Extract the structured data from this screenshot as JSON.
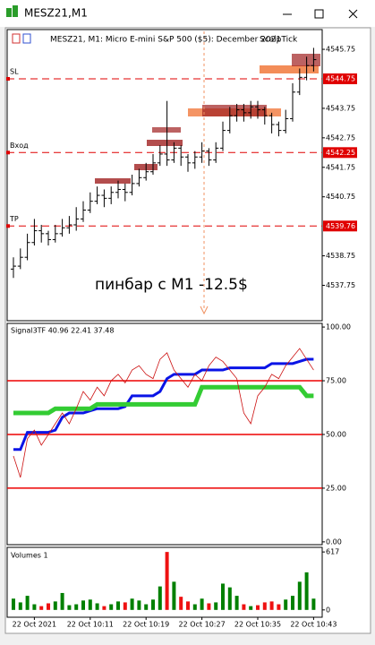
{
  "window": {
    "title": "MESZ21,M1"
  },
  "chart_data": [
    {
      "type": "ohlc",
      "title": "MESZ21, M1:  Micro E-mini S&P 500 ($5): December 2021",
      "indicator_name": "ScalpTick",
      "annotation": "пинбар с М1 -12.5$",
      "open": [
        4538.3,
        4538.4,
        4538.7,
        4539.2,
        4539.6,
        4539.5,
        4539.3,
        4539.5,
        4539.7,
        4539.8,
        4540.0,
        4540.3,
        4540.6,
        4540.8,
        4540.7,
        4540.9,
        4541.0,
        4540.9,
        4541.2,
        4541.4,
        4541.6,
        4541.9,
        4542.2,
        4542.0,
        4542.4,
        4542.1,
        4541.9,
        4542.1,
        4542.3,
        4542.0,
        4542.4,
        4543.0,
        4543.5,
        4543.7,
        4543.6,
        4543.8,
        4543.7,
        4543.5,
        4543.2,
        4543.0,
        4543.4,
        4544.3,
        4544.8,
        4545.2
      ],
      "high": [
        4538.7,
        4539.0,
        4539.5,
        4540.0,
        4539.8,
        4539.6,
        4539.8,
        4540.0,
        4540.1,
        4540.4,
        4540.6,
        4540.9,
        4541.1,
        4541.0,
        4541.1,
        4541.3,
        4541.2,
        4541.5,
        4541.7,
        4541.9,
        4542.2,
        4542.5,
        4544.0,
        4542.6,
        4542.5,
        4542.2,
        4542.3,
        4542.6,
        4542.4,
        4542.6,
        4543.3,
        4543.8,
        4543.9,
        4543.9,
        4544.0,
        4544.0,
        4543.8,
        4543.6,
        4543.3,
        4543.7,
        4544.6,
        4545.1,
        4545.5,
        4545.8
      ],
      "low": [
        4538.0,
        4538.3,
        4538.6,
        4539.1,
        4539.2,
        4539.1,
        4539.2,
        4539.4,
        4539.5,
        4539.6,
        4539.9,
        4540.2,
        4540.5,
        4540.4,
        4540.5,
        4540.7,
        4540.6,
        4540.8,
        4541.1,
        4541.3,
        4541.5,
        4541.8,
        4541.8,
        4541.9,
        4541.8,
        4541.6,
        4541.7,
        4541.9,
        4541.8,
        4541.9,
        4542.3,
        4542.9,
        4543.3,
        4543.3,
        4543.4,
        4543.4,
        4543.2,
        4542.9,
        4542.8,
        4542.9,
        4543.3,
        4544.2,
        4544.7,
        4545.0
      ],
      "close": [
        4538.4,
        4538.7,
        4539.2,
        4539.6,
        4539.5,
        4539.3,
        4539.5,
        4539.7,
        4539.8,
        4540.0,
        4540.3,
        4540.6,
        4540.8,
        4540.7,
        4540.9,
        4541.0,
        4540.9,
        4541.2,
        4541.4,
        4541.6,
        4541.9,
        4542.2,
        4542.0,
        4542.4,
        4542.1,
        4541.9,
        4542.1,
        4542.3,
        4542.0,
        4542.4,
        4543.0,
        4543.5,
        4543.7,
        4543.6,
        4543.8,
        4543.7,
        4543.5,
        4543.2,
        4543.0,
        4543.4,
        4544.3,
        4544.8,
        4545.2,
        4545.4
      ],
      "color": "#000000",
      "levels": [
        {
          "name": "SL",
          "value": 4544.75,
          "color": "#e00000"
        },
        {
          "name": "Вход",
          "value": 4542.25,
          "color": "#e00000"
        },
        {
          "name": "TP",
          "value": 4539.76,
          "color": "#e00000"
        }
      ],
      "ylim": [
        4536.55,
        4546.42
      ],
      "yticks": [
        4545.75,
        4543.75,
        4542.75,
        4541.75,
        4540.75,
        4538.75,
        4537.75
      ]
    },
    {
      "type": "line",
      "title": "Signal3TF 40.96 22.41 37.48",
      "series": [
        {
          "color": "#0a14e6",
          "width": 3,
          "values": [
            43,
            43,
            51,
            51,
            51,
            51,
            52,
            58,
            60,
            60,
            60,
            61,
            62,
            62,
            62,
            62,
            63,
            68,
            68,
            68,
            68,
            70,
            76,
            78,
            78,
            78,
            78,
            80,
            80,
            80,
            80,
            81,
            81,
            81,
            81,
            81,
            81,
            83,
            83,
            83,
            83,
            84,
            85,
            85
          ]
        },
        {
          "color": "#33cc33",
          "width": 5,
          "values": [
            60,
            60,
            60,
            60,
            60,
            60,
            62,
            62,
            62,
            62,
            62,
            62,
            64,
            64,
            64,
            64,
            64,
            64,
            64,
            64,
            64,
            64,
            64,
            64,
            64,
            64,
            64,
            72,
            72,
            72,
            72,
            72,
            72,
            72,
            72,
            72,
            72,
            72,
            72,
            72,
            72,
            72,
            68,
            68
          ]
        },
        {
          "color": "#cc1010",
          "width": 0.8,
          "values": [
            40,
            30,
            48,
            52,
            45,
            50,
            55,
            60,
            55,
            62,
            70,
            66,
            72,
            68,
            75,
            78,
            74,
            80,
            82,
            78,
            76,
            85,
            88,
            80,
            76,
            72,
            78,
            75,
            82,
            86,
            84,
            80,
            76,
            60,
            55,
            68,
            72,
            78,
            76,
            82,
            86,
            90,
            85,
            80
          ]
        }
      ],
      "hlines": [
        75,
        50,
        25
      ],
      "hline_color": "#ee0000",
      "ylim": [
        -1.3,
        101.7
      ],
      "yticks": [
        {
          "value": 100,
          "label": "100.00"
        },
        {
          "value": 75,
          "label": "75.00"
        },
        {
          "value": 50,
          "label": "50.00"
        },
        {
          "value": 25,
          "label": "25.00"
        },
        {
          "value": 0,
          "label": "0.00"
        }
      ]
    },
    {
      "type": "volume",
      "title": "Volumes 1",
      "up_color": "#008000",
      "down_color": "#ee1111",
      "categories": [
        null,
        null,
        null,
        "22 Oct 2021",
        null,
        null,
        null,
        null,
        null,
        null,
        null,
        "22 Oct 10:11",
        null,
        null,
        null,
        null,
        null,
        null,
        null,
        "22 Oct 10:19",
        null,
        null,
        null,
        null,
        null,
        null,
        null,
        "22 Oct 10:27",
        null,
        null,
        null,
        null,
        null,
        null,
        null,
        "22 Oct 10:35",
        null,
        null,
        null,
        null,
        null,
        null,
        null,
        "22 Oct 10:43"
      ],
      "values": [
        120,
        80,
        150,
        60,
        40,
        70,
        90,
        180,
        50,
        60,
        100,
        110,
        70,
        40,
        60,
        90,
        80,
        120,
        100,
        60,
        110,
        250,
        617,
        300,
        140,
        90,
        60,
        120,
        70,
        80,
        280,
        240,
        150,
        60,
        40,
        50,
        80,
        90,
        60,
        110,
        150,
        300,
        400,
        120
      ],
      "ylim": [
        -78,
        666
      ],
      "yticks": [
        617,
        0
      ]
    }
  ]
}
